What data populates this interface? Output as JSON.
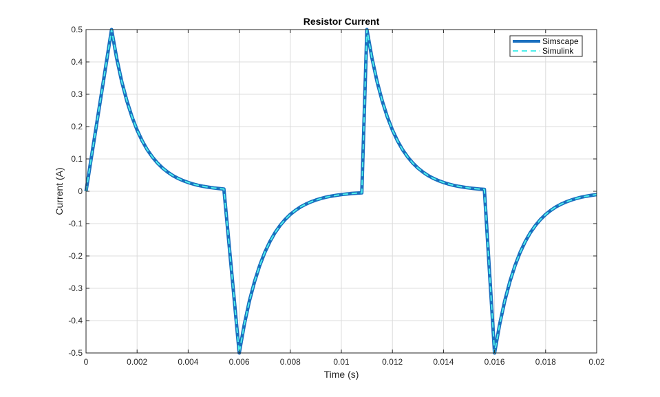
{
  "chart_data": {
    "type": "line",
    "title": "Resistor Current",
    "xlabel": "Time (s)",
    "ylabel": "Current (A)",
    "xlim": [
      0,
      0.02
    ],
    "ylim": [
      -0.5,
      0.5
    ],
    "grid": true,
    "legend_position": "top-right",
    "xticks": [
      0,
      0.002,
      0.004,
      0.006,
      0.008,
      0.01,
      0.012,
      0.014,
      0.016,
      0.018,
      0.02
    ],
    "xtick_labels": [
      "0",
      "0.002",
      "0.004",
      "0.006",
      "0.008",
      "0.01",
      "0.012",
      "0.014",
      "0.016",
      "0.018",
      "0.02"
    ],
    "yticks": [
      -0.5,
      -0.4,
      -0.3,
      -0.2,
      -0.1,
      0,
      0.1,
      0.2,
      0.3,
      0.4,
      0.5
    ],
    "ytick_labels": [
      "-0.5",
      "-0.4",
      "-0.3",
      "-0.2",
      "-0.1",
      "0",
      "0.1",
      "0.2",
      "0.3",
      "0.4",
      "0.5"
    ],
    "x": [
      0,
      0.001,
      0.0012,
      0.0014,
      0.0016,
      0.0018,
      0.002,
      0.0022,
      0.0024,
      0.0026,
      0.0028,
      0.003,
      0.0032,
      0.0034,
      0.0036,
      0.0038,
      0.004,
      0.0042,
      0.0044,
      0.0046,
      0.0048,
      0.005,
      0.0052,
      0.0054,
      0.006,
      0.0062,
      0.0064,
      0.0066,
      0.0068,
      0.007,
      0.0072,
      0.0074,
      0.0076,
      0.0078,
      0.008,
      0.0082,
      0.0084,
      0.0086,
      0.0088,
      0.009,
      0.0092,
      0.0094,
      0.0096,
      0.0098,
      0.01,
      0.0102,
      0.0104,
      0.0106,
      0.0108,
      0.011,
      0.0112,
      0.0114,
      0.0116,
      0.0118,
      0.012,
      0.0122,
      0.0124,
      0.0126,
      0.0128,
      0.013,
      0.0132,
      0.0134,
      0.0136,
      0.0138,
      0.014,
      0.0142,
      0.0144,
      0.0146,
      0.0148,
      0.015,
      0.0152,
      0.0154,
      0.0156,
      0.016,
      0.0162,
      0.0164,
      0.0166,
      0.0168,
      0.017,
      0.0172,
      0.0174,
      0.0176,
      0.0178,
      0.018,
      0.0182,
      0.0184,
      0.0186,
      0.0188,
      0.019,
      0.0192,
      0.0194,
      0.0196,
      0.0198,
      0.02
    ],
    "series": [
      {
        "name": "Simscape",
        "color": "#1A6FBF",
        "style": "solid",
        "values": [
          0,
          0.5,
          0.4118,
          0.3391,
          0.2792,
          0.2299,
          0.1894,
          0.1559,
          0.1284,
          0.1058,
          0.0871,
          0.0717,
          0.0591,
          0.0486,
          0.0401,
          0.033,
          0.0272,
          0.0224,
          0.0184,
          0.0152,
          0.0125,
          0.0103,
          0.0085,
          0.007,
          -0.5,
          -0.4118,
          -0.3391,
          -0.2792,
          -0.2299,
          -0.1894,
          -0.1559,
          -0.1284,
          -0.1058,
          -0.0871,
          -0.0717,
          -0.0591,
          -0.0486,
          -0.0401,
          -0.033,
          -0.0272,
          -0.0224,
          -0.0184,
          -0.0152,
          -0.0125,
          -0.0103,
          -0.0085,
          -0.007,
          -0.0058,
          -0.0048,
          0.5,
          0.4118,
          0.3391,
          0.2792,
          0.2299,
          0.1894,
          0.1559,
          0.1284,
          0.1058,
          0.0871,
          0.0717,
          0.0591,
          0.0486,
          0.0401,
          0.033,
          0.0272,
          0.0224,
          0.0184,
          0.0152,
          0.0125,
          0.0103,
          0.0085,
          0.007,
          0.0058,
          -0.5,
          -0.4118,
          -0.3391,
          -0.2792,
          -0.2299,
          -0.1894,
          -0.1559,
          -0.1284,
          -0.1058,
          -0.0871,
          -0.0717,
          -0.0591,
          -0.0486,
          -0.0401,
          -0.033,
          -0.0272,
          -0.0224,
          -0.0184,
          -0.0152,
          -0.0125,
          -0.0103
        ]
      },
      {
        "name": "Simulink",
        "color": "#4DEEEA",
        "style": "dashed",
        "values": [
          0,
          0.5,
          0.4118,
          0.3391,
          0.2792,
          0.2299,
          0.1894,
          0.1559,
          0.1284,
          0.1058,
          0.0871,
          0.0717,
          0.0591,
          0.0486,
          0.0401,
          0.033,
          0.0272,
          0.0224,
          0.0184,
          0.0152,
          0.0125,
          0.0103,
          0.0085,
          0.007,
          -0.5,
          -0.4118,
          -0.3391,
          -0.2792,
          -0.2299,
          -0.1894,
          -0.1559,
          -0.1284,
          -0.1058,
          -0.0871,
          -0.0717,
          -0.0591,
          -0.0486,
          -0.0401,
          -0.033,
          -0.0272,
          -0.0224,
          -0.0184,
          -0.0152,
          -0.0125,
          -0.0103,
          -0.0085,
          -0.007,
          -0.0058,
          -0.0048,
          0.5,
          0.4118,
          0.3391,
          0.2792,
          0.2299,
          0.1894,
          0.1559,
          0.1284,
          0.1058,
          0.0871,
          0.0717,
          0.0591,
          0.0486,
          0.0401,
          0.033,
          0.0272,
          0.0224,
          0.0184,
          0.0152,
          0.0125,
          0.0103,
          0.0085,
          0.007,
          0.0058,
          -0.5,
          -0.4118,
          -0.3391,
          -0.2792,
          -0.2299,
          -0.1894,
          -0.1559,
          -0.1284,
          -0.1058,
          -0.0871,
          -0.0717,
          -0.0591,
          -0.0486,
          -0.0401,
          -0.033,
          -0.0272,
          -0.0224,
          -0.0184,
          -0.0152,
          -0.0125,
          -0.0103
        ]
      }
    ]
  }
}
